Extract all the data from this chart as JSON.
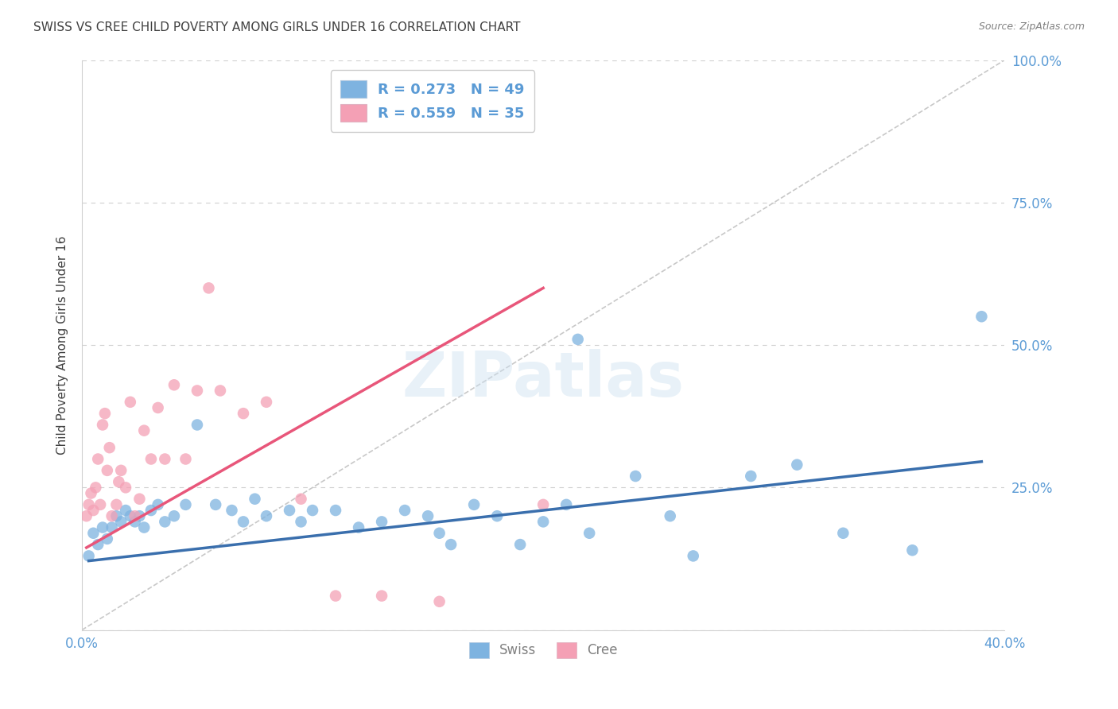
{
  "title": "SWISS VS CREE CHILD POVERTY AMONG GIRLS UNDER 16 CORRELATION CHART",
  "source": "Source: ZipAtlas.com",
  "ylabel": "Child Poverty Among Girls Under 16",
  "xlim": [
    0.0,
    0.4
  ],
  "ylim": [
    0.0,
    1.0
  ],
  "swiss_R": 0.273,
  "swiss_N": 49,
  "cree_R": 0.559,
  "cree_N": 35,
  "swiss_color": "#7eb3e0",
  "cree_color": "#f4a0b5",
  "swiss_line_color": "#3a6fad",
  "cree_line_color": "#e8567a",
  "diagonal_color": "#c8c8c8",
  "background_color": "#ffffff",
  "grid_color": "#d0d0d0",
  "title_color": "#404040",
  "source_color": "#808080",
  "axis_label_color": "#404040",
  "tick_color": "#5b9bd5",
  "legend_text_color": "#5b9bd5",
  "swiss_line_intercept": 0.12,
  "swiss_line_slope": 0.45,
  "cree_line_intercept": 0.14,
  "cree_line_slope": 2.3,
  "swiss_x": [
    0.003,
    0.005,
    0.007,
    0.009,
    0.011,
    0.013,
    0.015,
    0.017,
    0.019,
    0.021,
    0.023,
    0.025,
    0.027,
    0.03,
    0.033,
    0.036,
    0.04,
    0.045,
    0.05,
    0.058,
    0.065,
    0.07,
    0.075,
    0.08,
    0.09,
    0.095,
    0.1,
    0.11,
    0.12,
    0.13,
    0.14,
    0.15,
    0.155,
    0.16,
    0.17,
    0.18,
    0.19,
    0.2,
    0.21,
    0.215,
    0.22,
    0.24,
    0.255,
    0.265,
    0.29,
    0.31,
    0.33,
    0.36,
    0.39
  ],
  "swiss_y": [
    0.13,
    0.17,
    0.15,
    0.18,
    0.16,
    0.18,
    0.2,
    0.19,
    0.21,
    0.2,
    0.19,
    0.2,
    0.18,
    0.21,
    0.22,
    0.19,
    0.2,
    0.22,
    0.36,
    0.22,
    0.21,
    0.19,
    0.23,
    0.2,
    0.21,
    0.19,
    0.21,
    0.21,
    0.18,
    0.19,
    0.21,
    0.2,
    0.17,
    0.15,
    0.22,
    0.2,
    0.15,
    0.19,
    0.22,
    0.51,
    0.17,
    0.27,
    0.2,
    0.13,
    0.27,
    0.29,
    0.17,
    0.14,
    0.55
  ],
  "cree_x": [
    0.002,
    0.003,
    0.004,
    0.005,
    0.006,
    0.007,
    0.008,
    0.009,
    0.01,
    0.011,
    0.012,
    0.013,
    0.015,
    0.016,
    0.017,
    0.019,
    0.021,
    0.023,
    0.025,
    0.027,
    0.03,
    0.033,
    0.036,
    0.04,
    0.045,
    0.05,
    0.055,
    0.06,
    0.07,
    0.08,
    0.095,
    0.11,
    0.13,
    0.155,
    0.2
  ],
  "cree_y": [
    0.2,
    0.22,
    0.24,
    0.21,
    0.25,
    0.3,
    0.22,
    0.36,
    0.38,
    0.28,
    0.32,
    0.2,
    0.22,
    0.26,
    0.28,
    0.25,
    0.4,
    0.2,
    0.23,
    0.35,
    0.3,
    0.39,
    0.3,
    0.43,
    0.3,
    0.42,
    0.6,
    0.42,
    0.38,
    0.4,
    0.23,
    0.06,
    0.06,
    0.05,
    0.22
  ]
}
